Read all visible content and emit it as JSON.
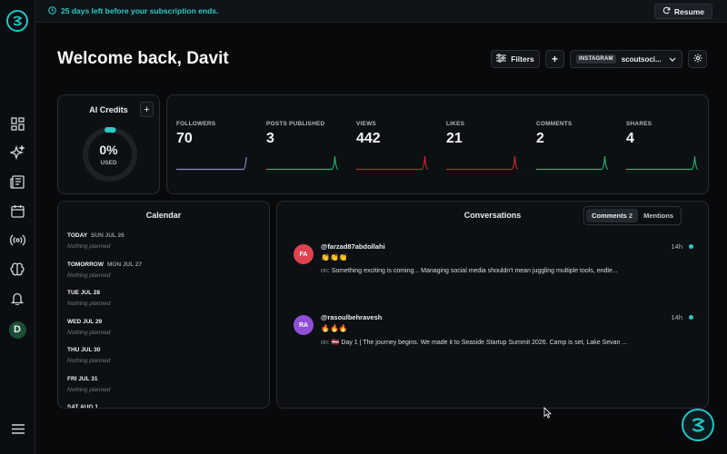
{
  "banner": {
    "message": "25 days left before your subscription ends.",
    "resume_label": "Resume"
  },
  "header": {
    "title": "Welcome back, Davit",
    "filters_label": "Filters",
    "add_label": "+",
    "platform": "INSTAGRAM",
    "account": "scoutsoci..."
  },
  "sidebar": {
    "items": [
      {
        "name": "dashboard-icon"
      },
      {
        "name": "sparkles-icon"
      },
      {
        "name": "newspaper-icon"
      },
      {
        "name": "calendar-icon"
      },
      {
        "name": "broadcast-icon"
      },
      {
        "name": "brain-icon"
      },
      {
        "name": "bell-icon"
      }
    ],
    "avatar_initial": "D"
  },
  "credits": {
    "title": "AI Credits",
    "add_label": "+",
    "percent": "0%",
    "percent_value": 0,
    "used_label": "USED"
  },
  "stats": [
    {
      "label": "FOLLOWERS",
      "value": "70",
      "color": "#8c87c9"
    },
    {
      "label": "POSTS PUBLISHED",
      "value": "3",
      "color": "#1fb36a"
    },
    {
      "label": "VIEWS",
      "value": "442",
      "color": "#c0272d"
    },
    {
      "label": "LIKES",
      "value": "21",
      "color": "#c0272d"
    },
    {
      "label": "COMMENTS",
      "value": "2",
      "color": "#1fb36a"
    },
    {
      "label": "SHARES",
      "value": "4",
      "color": "#1fb36a"
    }
  ],
  "calendar": {
    "title": "Calendar",
    "empty_text": "Nothing planned",
    "days": [
      {
        "head": "TODAY",
        "date": "SUN JUL 26"
      },
      {
        "head": "TOMORROW",
        "date": "MON JUL 27"
      },
      {
        "head": "TUE JUL 28",
        "date": ""
      },
      {
        "head": "WED JUL 29",
        "date": ""
      },
      {
        "head": "THU JUL 30",
        "date": ""
      },
      {
        "head": "FRI JUL 31",
        "date": ""
      },
      {
        "head": "SAT AUG 1",
        "date": ""
      }
    ]
  },
  "conversations": {
    "title": "Conversations",
    "tabs": [
      {
        "label": "Comments",
        "count": "2"
      },
      {
        "label": "Mentions",
        "count": ""
      }
    ],
    "items": [
      {
        "initials": "FA",
        "avatar_color": "#e0434f",
        "user": "@farzad87abdollahi",
        "emoji": "👏👏👏",
        "on_label": "on:",
        "post": "Something exciting is coming... Managing social media shouldn't mean juggling multiple tools, endle...",
        "time": "14h"
      },
      {
        "initials": "RA",
        "avatar_color": "#8f4fd6",
        "user": "@rasoulbehravesh",
        "emoji": "🔥🔥🔥",
        "on_label": "on:",
        "post": "🇱🇻 Day 1 | The journey begins. We made it to Seaside Startup Summit 2026. Camp is set, Lake Sevan ...",
        "time": "14h"
      }
    ]
  }
}
